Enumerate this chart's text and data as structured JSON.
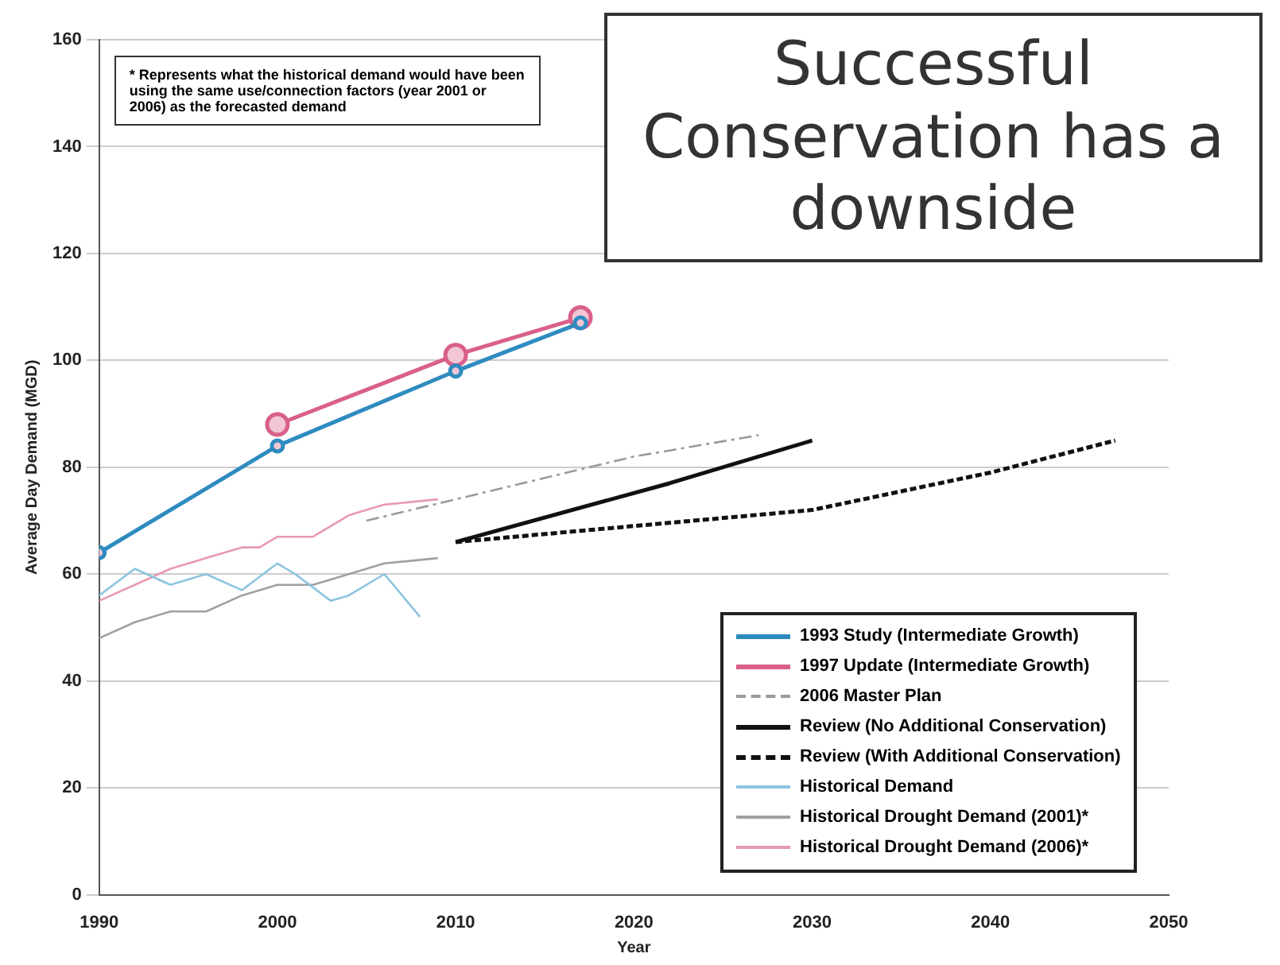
{
  "chart_data": {
    "type": "line",
    "xlabel": "Year",
    "ylabel": "Average Day Demand (MGD)",
    "xlim": [
      1990,
      2050
    ],
    "xticks": [
      1990,
      2000,
      2010,
      2020,
      2030,
      2040,
      2050
    ],
    "ylim": [
      0,
      160
    ],
    "yticks": [
      0,
      20,
      40,
      60,
      80,
      100,
      120,
      140,
      160
    ],
    "grid": "y",
    "legend": "bottom right",
    "annotations": [
      "* Represents what the historical demand would have been using the same use/connection factors (year 2001 or 2006) as the forecasted demand",
      "Successful Conservation has a downside"
    ],
    "series": [
      {
        "name": "1993 Study (Intermediate Growth)",
        "color": "#2e8bc0",
        "marker": "circle",
        "line_style": "solid",
        "x": [
          1990,
          2000,
          2010,
          2017
        ],
        "values": [
          64,
          84,
          98,
          107
        ]
      },
      {
        "name": "1997 Update (Intermediate Growth)",
        "color": "#d9608a",
        "marker": "circle",
        "line_style": "solid",
        "x": [
          2000,
          2010,
          2017
        ],
        "values": [
          88,
          101,
          108
        ]
      },
      {
        "name": "2006 Master Plan",
        "color": "#9a9a9a",
        "marker": "none",
        "line_style": "dashed",
        "x": [
          2005,
          2020,
          2027
        ],
        "values": [
          70,
          82,
          86
        ]
      },
      {
        "name": "Review (No Additional Conservation)",
        "color": "#111111",
        "marker": "none",
        "line_style": "solid",
        "x": [
          2010,
          2022,
          2030
        ],
        "values": [
          66,
          77,
          85
        ]
      },
      {
        "name": "Review (With Additional Conservation)",
        "color": "#111111",
        "marker": "none",
        "line_style": "dotted",
        "x": [
          2010,
          2020,
          2030,
          2040,
          2047
        ],
        "values": [
          66,
          69,
          72,
          79,
          85
        ]
      },
      {
        "name": "Historical Demand",
        "color": "#8cc4e0",
        "marker": "none",
        "line_style": "solid",
        "x": [
          1990,
          1992,
          1994,
          1996,
          1998,
          2000,
          2001,
          2003,
          2004,
          2006,
          2008
        ],
        "values": [
          56,
          61,
          58,
          60,
          57,
          62,
          60,
          55,
          56,
          60,
          52
        ]
      },
      {
        "name": "Historical Drought Demand (2001)*",
        "color": "#a0a0a0",
        "marker": "none",
        "line_style": "solid",
        "x": [
          1990,
          1992,
          1994,
          1996,
          1998,
          2000,
          2002,
          2004,
          2006,
          2009
        ],
        "values": [
          48,
          51,
          53,
          53,
          56,
          58,
          58,
          60,
          62,
          63
        ]
      },
      {
        "name": "Historical Drought Demand (2006)*",
        "color": "#e89aae",
        "marker": "none",
        "line_style": "solid",
        "x": [
          1990,
          1992,
          1994,
          1996,
          1998,
          1999,
          2000,
          2002,
          2004,
          2006,
          2009
        ],
        "values": [
          55,
          58,
          61,
          63,
          65,
          65,
          67,
          67,
          71,
          73,
          74
        ]
      }
    ]
  }
}
